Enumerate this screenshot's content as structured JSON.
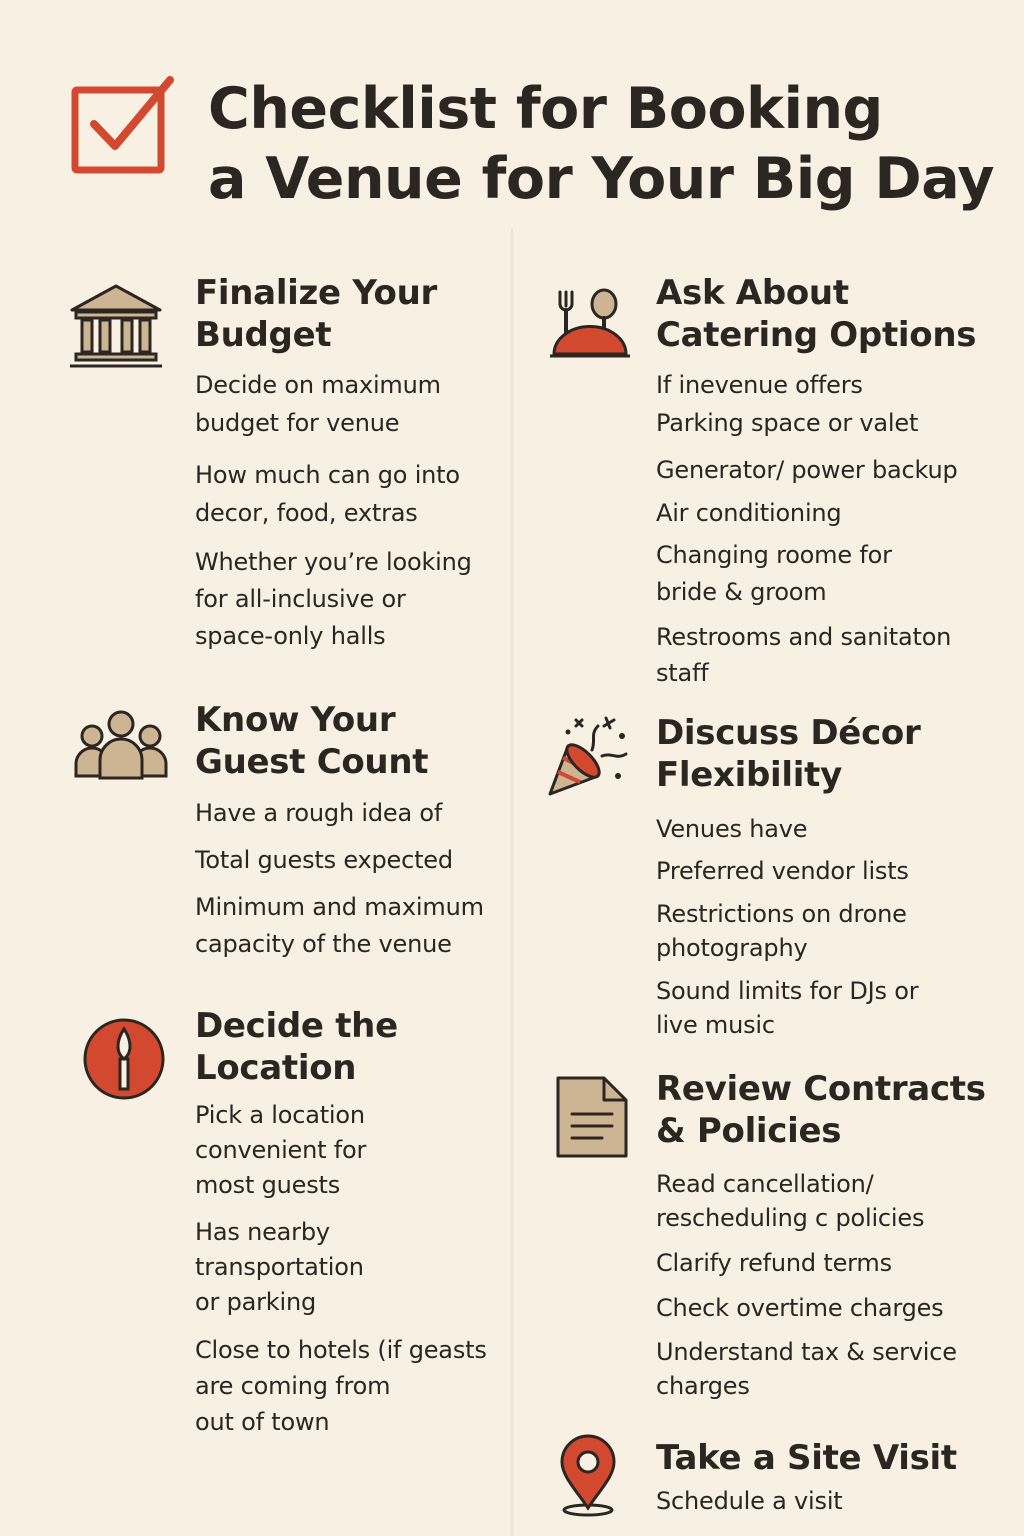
{
  "title": "Checklist for Booking\na Venue for Your Big Day",
  "colors": {
    "accent": "#d2492f",
    "tan": "#cdb594",
    "ink": "#2b2622",
    "background": "#f9f0e4"
  },
  "sections": [
    {
      "icon": "bank-building-icon",
      "title": "Finalize Your\nBudget",
      "items": [
        "Decide on maximum\nbudget for venue",
        "How much can go  into\ndecor, food, extras",
        "Whether you’re looking\nfor all-inclusive or\nspace-only halls"
      ]
    },
    {
      "icon": "guests-group-icon",
      "title": "Know Your\nGuest Count",
      "items": [
        "Have a rough idea of",
        "Total guests expected",
        "Minimum and maximum\ncapacity of the venue"
      ]
    },
    {
      "icon": "location-torch-icon",
      "title": "Decide the\nLocation",
      "items": [
        "Pick a location\nconvenient for\nmost guests",
        "Has nearby transportation\nor parking",
        "Close to hotels (if geasts\nare coming from\nout of town"
      ]
    },
    {
      "icon": "catering-cloche-icon",
      "title": "Ask About\nCatering Options",
      "items": [
        "If inevenue offers\nParking space or valet",
        "Generator/ power backup",
        "Air conditioning",
        "Changing roome for\nbride & groom",
        "Restrooms and sanitaton\nstaff"
      ]
    },
    {
      "icon": "party-popper-icon",
      "title": "Discuss Décor\nFlexibility",
      "items": [
        "Venues have",
        "Preferred vendor lists",
        "Restrictions on drone\nphotography",
        "Sound limits for DJs or\nlive music"
      ]
    },
    {
      "icon": "contract-document-icon",
      "title": "Review Contracts\n& Policies",
      "items": [
        "Read cancellation/\nrescheduling c policies",
        "Clarify refund terms",
        "Check overtime charges",
        "Understand tax & service\ncharges"
      ]
    },
    {
      "icon": "map-pin-icon",
      "title": "Take a Site Visit",
      "items": [
        "Schedule a visit"
      ]
    }
  ]
}
